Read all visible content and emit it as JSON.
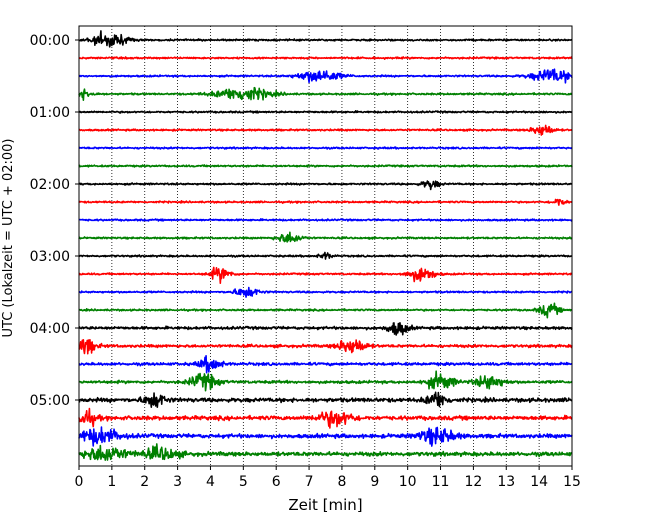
{
  "chart_data": {
    "type": "line",
    "title": "",
    "xlabel": "Zeit  [min]",
    "ylabel": "UTC (Lokalzeit = UTC + 02:00)",
    "xlim": [
      0,
      15
    ],
    "x_ticks": [
      "0",
      "1",
      "2",
      "3",
      "4",
      "5",
      "6",
      "7",
      "8",
      "9",
      "10",
      "11",
      "12",
      "13",
      "14",
      "15"
    ],
    "y_ticks": [
      "00:00",
      "01:00",
      "02:00",
      "03:00",
      "04:00",
      "05:00"
    ],
    "grid": "vertical dotted",
    "trace_interval_min": 15,
    "trace_colors": [
      "#000000",
      "#ff0000",
      "#0000ff",
      "#008000"
    ],
    "traces": [
      {
        "start": "00:00",
        "color": "#000000",
        "bursts": [
          {
            "t": 0.9,
            "amp": 1.0,
            "w": 0.5
          }
        ]
      },
      {
        "start": "00:15",
        "color": "#ff0000",
        "bursts": []
      },
      {
        "start": "00:30",
        "color": "#0000ff",
        "bursts": [
          {
            "t": 7.3,
            "amp": 0.85,
            "w": 0.6
          },
          {
            "t": 14.4,
            "amp": 0.9,
            "w": 0.6
          }
        ]
      },
      {
        "start": "00:45",
        "color": "#008000",
        "bursts": [
          {
            "t": 0.1,
            "amp": 0.6,
            "w": 0.3
          },
          {
            "t": 5.0,
            "amp": 0.9,
            "w": 0.8
          }
        ]
      },
      {
        "start": "01:00",
        "color": "#000000",
        "bursts": []
      },
      {
        "start": "01:15",
        "color": "#ff0000",
        "bursts": [
          {
            "t": 14.1,
            "amp": 0.8,
            "w": 0.3
          }
        ]
      },
      {
        "start": "01:30",
        "color": "#0000ff",
        "bursts": []
      },
      {
        "start": "01:45",
        "color": "#008000",
        "bursts": []
      },
      {
        "start": "02:00",
        "color": "#000000",
        "bursts": [
          {
            "t": 10.7,
            "amp": 0.6,
            "w": 0.25
          }
        ]
      },
      {
        "start": "02:15",
        "color": "#ff0000",
        "bursts": [
          {
            "t": 14.6,
            "amp": 0.5,
            "w": 0.2
          }
        ]
      },
      {
        "start": "02:30",
        "color": "#0000ff",
        "bursts": []
      },
      {
        "start": "02:45",
        "color": "#008000",
        "bursts": [
          {
            "t": 6.4,
            "amp": 0.7,
            "w": 0.35
          }
        ]
      },
      {
        "start": "03:00",
        "color": "#000000",
        "bursts": [
          {
            "t": 7.5,
            "amp": 0.4,
            "w": 0.2
          }
        ]
      },
      {
        "start": "03:15",
        "color": "#ff0000",
        "bursts": [
          {
            "t": 4.3,
            "amp": 0.9,
            "w": 0.3
          },
          {
            "t": 10.4,
            "amp": 0.9,
            "w": 0.4
          }
        ]
      },
      {
        "start": "03:30",
        "color": "#0000ff",
        "bursts": [
          {
            "t": 5.1,
            "amp": 0.7,
            "w": 0.35
          }
        ]
      },
      {
        "start": "03:45",
        "color": "#008000",
        "bursts": [
          {
            "t": 14.3,
            "amp": 0.8,
            "w": 0.3
          }
        ]
      },
      {
        "start": "04:00",
        "color": "#000000",
        "bursts": [
          {
            "t": 9.7,
            "amp": 0.9,
            "w": 0.3
          }
        ]
      },
      {
        "start": "04:15",
        "color": "#ff0000",
        "bursts": [
          {
            "t": 0.2,
            "amp": 1.0,
            "w": 0.3
          },
          {
            "t": 8.3,
            "amp": 1.0,
            "w": 0.4
          }
        ]
      },
      {
        "start": "04:30",
        "color": "#0000ff",
        "bursts": [
          {
            "t": 4.0,
            "amp": 1.0,
            "w": 0.3
          }
        ]
      },
      {
        "start": "04:45",
        "color": "#008000",
        "bursts": [
          {
            "t": 3.8,
            "amp": 1.0,
            "w": 0.4
          },
          {
            "t": 11.0,
            "amp": 1.0,
            "w": 0.4
          },
          {
            "t": 12.5,
            "amp": 0.9,
            "w": 0.4
          }
        ]
      },
      {
        "start": "05:00",
        "color": "#000000",
        "bursts": [
          {
            "t": 2.3,
            "amp": 1.0,
            "w": 0.3
          },
          {
            "t": 10.9,
            "amp": 1.0,
            "w": 0.3
          }
        ]
      },
      {
        "start": "05:15",
        "color": "#ff0000",
        "bursts": [
          {
            "t": 0.2,
            "amp": 1.0,
            "w": 0.3
          },
          {
            "t": 7.8,
            "amp": 1.0,
            "w": 0.5
          }
        ]
      },
      {
        "start": "05:30",
        "color": "#0000ff",
        "bursts": [
          {
            "t": 0.6,
            "amp": 1.0,
            "w": 0.6
          },
          {
            "t": 10.9,
            "amp": 1.0,
            "w": 0.5
          }
        ]
      },
      {
        "start": "05:45",
        "color": "#008000",
        "bursts": [
          {
            "t": 0.8,
            "amp": 1.0,
            "w": 0.6
          },
          {
            "t": 2.5,
            "amp": 0.8,
            "w": 0.5
          }
        ]
      }
    ]
  }
}
